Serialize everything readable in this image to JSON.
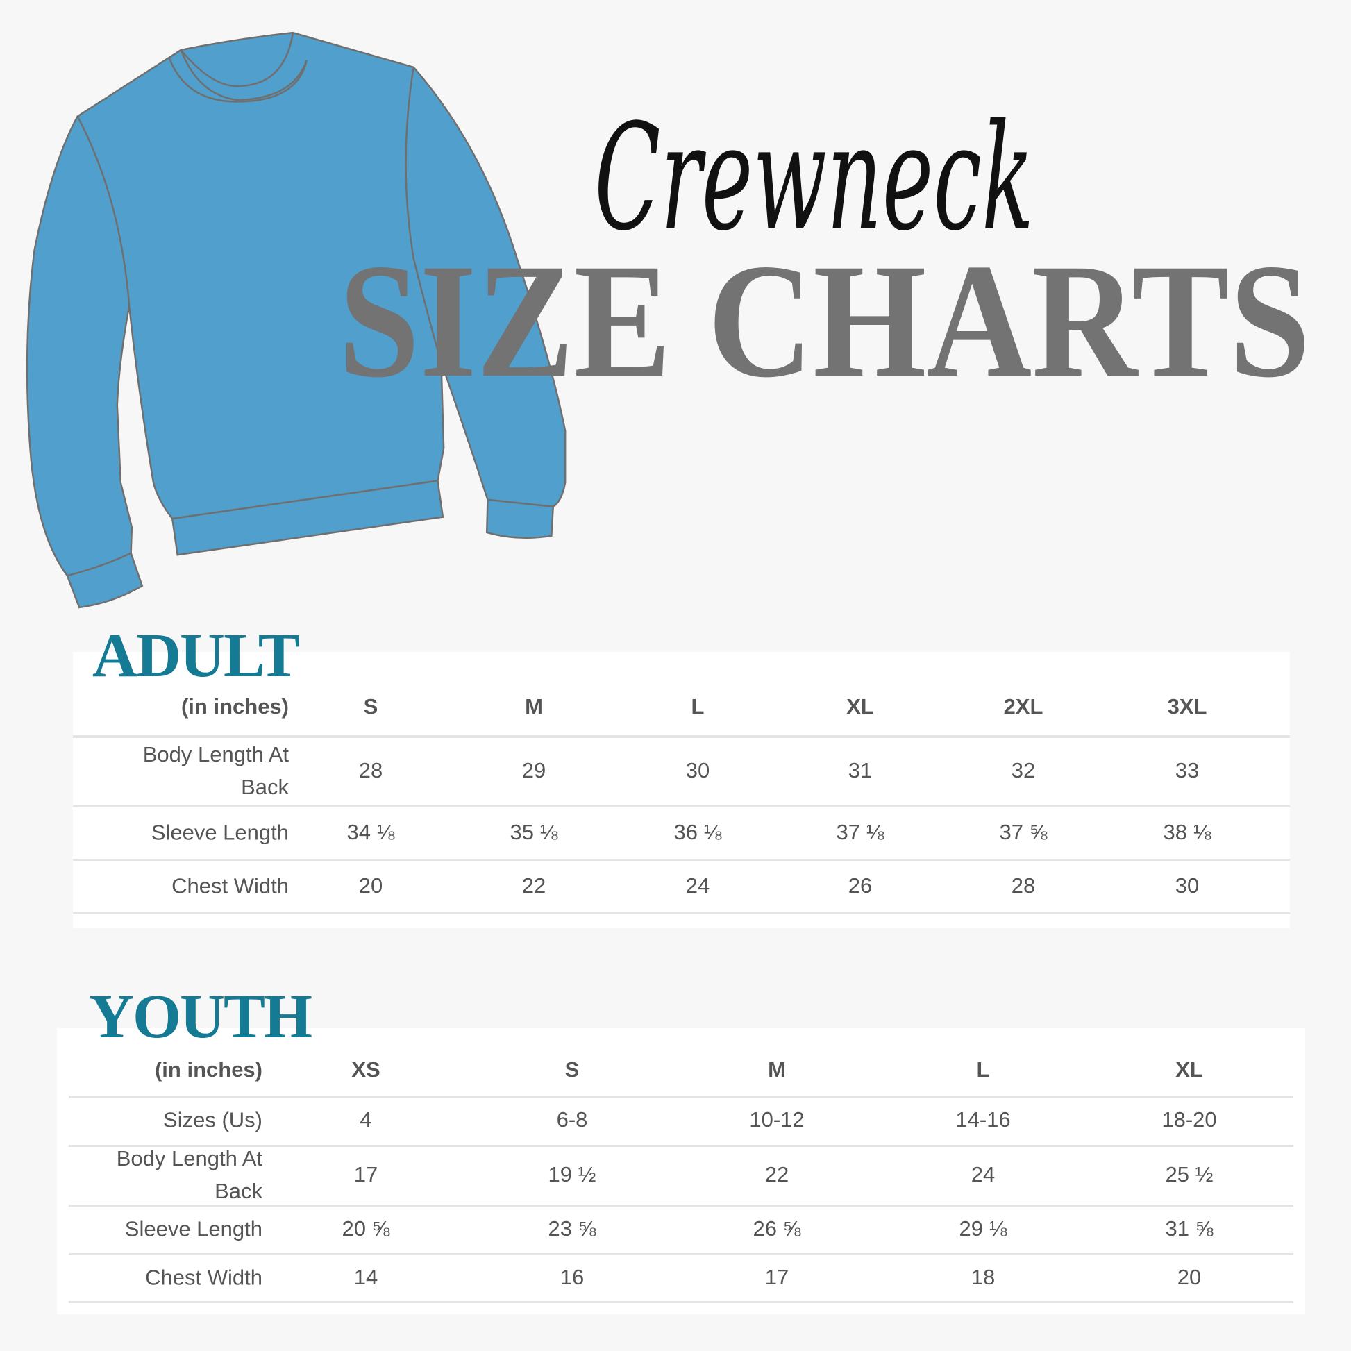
{
  "header": {
    "script_title": "Crewneck",
    "title": "SIZE CHARTS",
    "title_color": "#737373",
    "garment_icon": "crewneck-sweatshirt-icon",
    "garment_color": "#519fcd"
  },
  "adult": {
    "title": "ADULT",
    "title_color": "#157a93",
    "unit_label": "(in inches)",
    "sizes": [
      "S",
      "M",
      "L",
      "XL",
      "2XL",
      "3XL"
    ],
    "rows": [
      {
        "label": "Body Length At Back",
        "values": [
          "28",
          "29",
          "30",
          "31",
          "32",
          "33"
        ]
      },
      {
        "label": "Sleeve Length",
        "values": [
          "34 ⅛",
          "35 ⅛",
          "36 ⅛",
          "37 ⅛",
          "37 ⅝",
          "38 ⅛"
        ]
      },
      {
        "label": "Chest Width",
        "values": [
          "20",
          "22",
          "24",
          "26",
          "28",
          "30"
        ]
      }
    ]
  },
  "youth": {
    "title": "YOUTH",
    "title_color": "#157a93",
    "unit_label": "(in inches)",
    "sizes": [
      "XS",
      "S",
      "M",
      "L",
      "XL"
    ],
    "rows": [
      {
        "label": "Sizes (Us)",
        "values": [
          "4",
          "6-8",
          "10-12",
          "14-16",
          "18-20"
        ]
      },
      {
        "label": "Body Length At Back",
        "values": [
          "17",
          "19 ½",
          "22",
          "24",
          "25 ½"
        ]
      },
      {
        "label": "Sleeve Length",
        "values": [
          "20 ⅝",
          "23 ⅝",
          "26 ⅝",
          "29 ⅛",
          "31 ⅝"
        ]
      },
      {
        "label": "Chest Width",
        "values": [
          "14",
          "16",
          "17",
          "18",
          "20"
        ]
      }
    ]
  }
}
